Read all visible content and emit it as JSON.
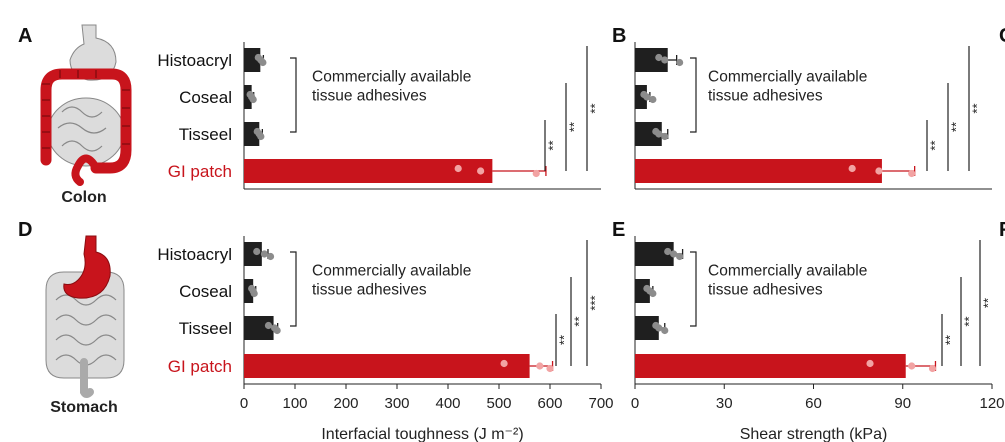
{
  "panel_letters": {
    "A": "A",
    "B": "B",
    "C": "C",
    "D": "D",
    "E": "E",
    "F": "F"
  },
  "organs": {
    "colon": "Colon",
    "stomach": "Stomach"
  },
  "note_lines": [
    "Commercially available",
    "tissue adhesives"
  ],
  "colors": {
    "red": "#c8141c",
    "black": "#1f1f1f",
    "dot_dark": "#8c8c8c",
    "dot_light": "#f2a3a3",
    "organ_gray": "#dcdcdc"
  },
  "chart_data": [
    {
      "type": "bar",
      "orientation": "horizontal",
      "panel": "A",
      "categories": [
        "Histoacryl",
        "Coseal",
        "Tisseel",
        "GI patch"
      ],
      "values": [
        32,
        15,
        30,
        487
      ],
      "errors": [
        6,
        4,
        6,
        105
      ],
      "points": [
        [
          28,
          33,
          37
        ],
        [
          12,
          15,
          18
        ],
        [
          26,
          30,
          33
        ],
        [
          420,
          464,
          573
        ]
      ],
      "xlim": [
        0,
        700
      ],
      "significance": [
        "**",
        "**",
        "**"
      ]
    },
    {
      "type": "bar",
      "orientation": "horizontal",
      "panel": "B",
      "categories": [
        "Histoacryl",
        "Coseal",
        "Tisseel",
        "GI patch"
      ],
      "values": [
        11,
        4,
        9,
        83
      ],
      "errors": [
        3,
        1,
        2,
        11
      ],
      "points": [
        [
          8,
          10,
          15
        ],
        [
          3,
          4,
          6
        ],
        [
          7,
          8,
          10
        ],
        [
          73,
          82,
          93
        ]
      ],
      "xlim": [
        0,
        120
      ],
      "significance": [
        "**",
        "**",
        "**"
      ]
    },
    {
      "type": "bar",
      "orientation": "horizontal",
      "panel": "D",
      "categories": [
        "Histoacryl",
        "Coseal",
        "Tisseel",
        "GI patch"
      ],
      "values": [
        35,
        18,
        58,
        560
      ],
      "errors": [
        12,
        5,
        8,
        45
      ],
      "points": [
        [
          25,
          40,
          52
        ],
        [
          15,
          18,
          20
        ],
        [
          48,
          60,
          65
        ],
        [
          510,
          580,
          600
        ]
      ],
      "xlim": [
        0,
        700
      ],
      "xticks": [
        0,
        100,
        200,
        300,
        400,
        500,
        600,
        700
      ],
      "xlabel": "Interfacial toughness (J m⁻²)",
      "significance": [
        "**",
        "**",
        "***"
      ]
    },
    {
      "type": "bar",
      "orientation": "horizontal",
      "panel": "E",
      "categories": [
        "Histoacryl",
        "Coseal",
        "Tisseel",
        "GI patch"
      ],
      "values": [
        13,
        5,
        8,
        91
      ],
      "errors": [
        3,
        1,
        2,
        10
      ],
      "points": [
        [
          11,
          13,
          15
        ],
        [
          4,
          5,
          6
        ],
        [
          7,
          8,
          10
        ],
        [
          79,
          93,
          100
        ]
      ],
      "xlim": [
        0,
        120
      ],
      "xticks": [
        0,
        30,
        60,
        90,
        120
      ],
      "xlabel": "Shear strength (kPa)",
      "significance": [
        "**",
        "**",
        "**"
      ]
    }
  ]
}
